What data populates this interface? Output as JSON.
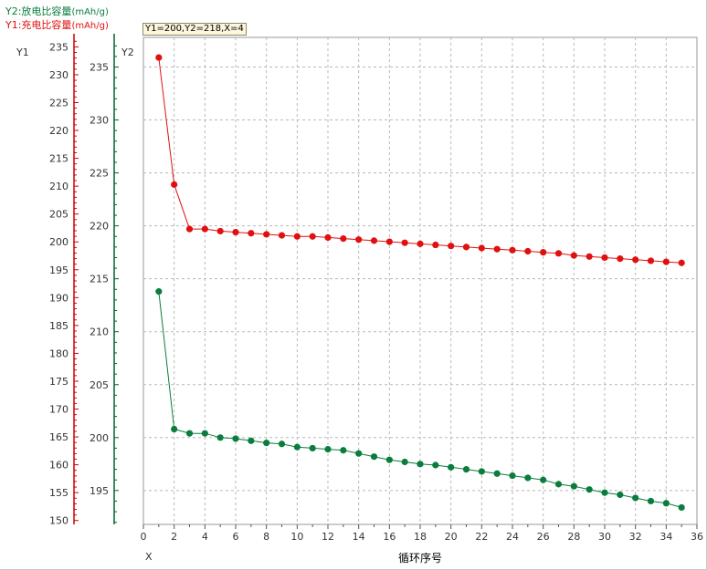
{
  "legend": {
    "y2": {
      "name": "Y2:放电比容量",
      "unit": "(mAh/g)",
      "color": "#0a7d3e"
    },
    "y1": {
      "name": "Y1:充电比容量",
      "unit": "(mAh/g)",
      "color": "#e01010"
    }
  },
  "tooltip": "Y1=200,Y2=218,X=4",
  "axes": {
    "y1_name": "Y1",
    "y2_name": "Y2",
    "x_name": "X",
    "x_label": "循环序号"
  },
  "colors": {
    "y1_axis": "#cc0000",
    "y2_axis": "#006030",
    "grid": "#b8b8b8"
  },
  "chart_data": {
    "type": "line",
    "title": "",
    "xlabel": "循环序号",
    "x": [
      1,
      2,
      3,
      4,
      5,
      6,
      7,
      8,
      9,
      10,
      11,
      12,
      13,
      14,
      15,
      16,
      17,
      18,
      19,
      20,
      21,
      22,
      23,
      24,
      25,
      26,
      27,
      28,
      29,
      30,
      31,
      32,
      33,
      34,
      35
    ],
    "xlim": [
      0,
      36
    ],
    "xticks": [
      0,
      2,
      4,
      6,
      8,
      10,
      12,
      14,
      16,
      18,
      20,
      22,
      24,
      26,
      28,
      30,
      32,
      34,
      36
    ],
    "grid": true,
    "series": [
      {
        "name": "Y1:充电比容量(mAh/g)",
        "color": "#e01010",
        "axis": "y2",
        "values": [
          235.9,
          223.9,
          219.7,
          219.7,
          219.5,
          219.4,
          219.3,
          219.2,
          219.1,
          219.0,
          219.0,
          218.9,
          218.8,
          218.7,
          218.6,
          218.5,
          218.4,
          218.3,
          218.2,
          218.1,
          218.0,
          217.9,
          217.8,
          217.7,
          217.6,
          217.5,
          217.4,
          217.2,
          217.1,
          217.0,
          216.9,
          216.8,
          216.7,
          216.6,
          216.5
        ]
      },
      {
        "name": "Y2:放电比容量(mAh/g)",
        "color": "#0a7d3e",
        "axis": "y2",
        "values": [
          213.8,
          200.8,
          200.4,
          200.4,
          200.0,
          199.9,
          199.7,
          199.5,
          199.4,
          199.1,
          199.0,
          198.9,
          198.8,
          198.5,
          198.2,
          197.9,
          197.7,
          197.5,
          197.4,
          197.2,
          197.0,
          196.8,
          196.6,
          196.4,
          196.2,
          196.0,
          195.6,
          195.4,
          195.1,
          194.8,
          194.6,
          194.3,
          194.0,
          193.8,
          193.4
        ]
      }
    ],
    "y1": {
      "ylim": [
        149.3,
        236.7
      ],
      "ticks": [
        150,
        155,
        160,
        165,
        170,
        175,
        180,
        185,
        190,
        195,
        200,
        205,
        210,
        215,
        220,
        225,
        230,
        235
      ]
    },
    "y2": {
      "ylim": [
        191.8,
        237.8
      ],
      "ticks": [
        195,
        200,
        205,
        210,
        215,
        220,
        225,
        230,
        235
      ]
    }
  }
}
